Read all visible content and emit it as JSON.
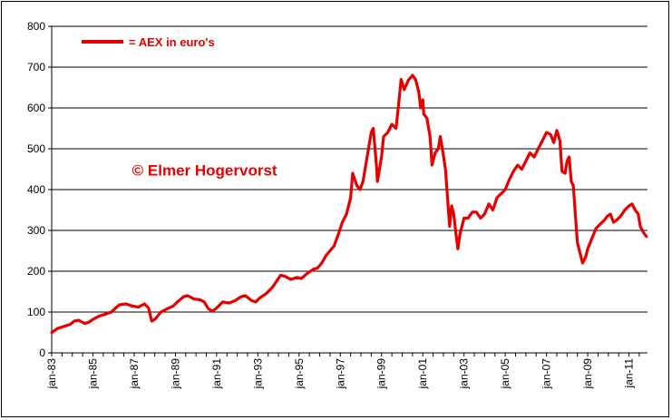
{
  "chart_data": {
    "type": "line",
    "title": "",
    "xlabel": "",
    "ylabel": "",
    "ylim": [
      0,
      800
    ],
    "yticks": [
      0,
      100,
      200,
      300,
      400,
      500,
      600,
      700,
      800
    ],
    "xlim": [
      1983.0,
      2011.9
    ],
    "xticks": [
      {
        "x": 1983,
        "label": "jan-83"
      },
      {
        "x": 1985,
        "label": "jan-85"
      },
      {
        "x": 1987,
        "label": "jan-87"
      },
      {
        "x": 1989,
        "label": "jan-89"
      },
      {
        "x": 1991,
        "label": "jan-91"
      },
      {
        "x": 1993,
        "label": "jan-93"
      },
      {
        "x": 1995,
        "label": "jan-95"
      },
      {
        "x": 1997,
        "label": "jan-97"
      },
      {
        "x": 1999,
        "label": "jan-99"
      },
      {
        "x": 2001,
        "label": "jan-01"
      },
      {
        "x": 2003,
        "label": "jan-03"
      },
      {
        "x": 2005,
        "label": "jan-05"
      },
      {
        "x": 2007,
        "label": "jan-07"
      },
      {
        "x": 2009,
        "label": "jan-09"
      },
      {
        "x": 2011,
        "label": "jan-11"
      }
    ],
    "grid": "horizontal",
    "legend_position": "top-left",
    "series": [
      {
        "name": "= AEX in euro's",
        "color": "#e60000",
        "points": [
          [
            1983.0,
            50
          ],
          [
            1983.3,
            60
          ],
          [
            1983.6,
            65
          ],
          [
            1983.9,
            70
          ],
          [
            1984.1,
            78
          ],
          [
            1984.3,
            80
          ],
          [
            1984.6,
            72
          ],
          [
            1984.8,
            75
          ],
          [
            1985.0,
            82
          ],
          [
            1985.3,
            90
          ],
          [
            1985.6,
            95
          ],
          [
            1985.9,
            100
          ],
          [
            1986.1,
            110
          ],
          [
            1986.3,
            118
          ],
          [
            1986.6,
            120
          ],
          [
            1986.9,
            115
          ],
          [
            1987.2,
            112
          ],
          [
            1987.5,
            120
          ],
          [
            1987.7,
            110
          ],
          [
            1987.85,
            78
          ],
          [
            1988.0,
            82
          ],
          [
            1988.3,
            100
          ],
          [
            1988.6,
            108
          ],
          [
            1988.9,
            115
          ],
          [
            1989.1,
            125
          ],
          [
            1989.4,
            138
          ],
          [
            1989.6,
            140
          ],
          [
            1989.9,
            132
          ],
          [
            1990.2,
            130
          ],
          [
            1990.4,
            125
          ],
          [
            1990.6,
            108
          ],
          [
            1990.8,
            102
          ],
          [
            1991.0,
            110
          ],
          [
            1991.3,
            125
          ],
          [
            1991.6,
            122
          ],
          [
            1991.9,
            128
          ],
          [
            1992.2,
            138
          ],
          [
            1992.4,
            140
          ],
          [
            1992.7,
            128
          ],
          [
            1992.9,
            125
          ],
          [
            1993.1,
            135
          ],
          [
            1993.4,
            145
          ],
          [
            1993.7,
            160
          ],
          [
            1993.9,
            175
          ],
          [
            1994.1,
            190
          ],
          [
            1994.3,
            188
          ],
          [
            1994.6,
            180
          ],
          [
            1994.9,
            185
          ],
          [
            1995.1,
            182
          ],
          [
            1995.4,
            195
          ],
          [
            1995.7,
            205
          ],
          [
            1995.9,
            208
          ],
          [
            1996.1,
            220
          ],
          [
            1996.3,
            238
          ],
          [
            1996.5,
            250
          ],
          [
            1996.7,
            262
          ],
          [
            1996.9,
            290
          ],
          [
            1997.1,
            320
          ],
          [
            1997.3,
            340
          ],
          [
            1997.5,
            380
          ],
          [
            1997.6,
            440
          ],
          [
            1997.8,
            410
          ],
          [
            1997.95,
            400
          ],
          [
            1998.1,
            420
          ],
          [
            1998.3,
            480
          ],
          [
            1998.5,
            540
          ],
          [
            1998.6,
            550
          ],
          [
            1998.75,
            460
          ],
          [
            1998.8,
            420
          ],
          [
            1999.0,
            480
          ],
          [
            1999.1,
            530
          ],
          [
            1999.3,
            540
          ],
          [
            1999.5,
            560
          ],
          [
            1999.7,
            550
          ],
          [
            1999.85,
            620
          ],
          [
            1999.95,
            670
          ],
          [
            2000.1,
            645
          ],
          [
            2000.3,
            668
          ],
          [
            2000.5,
            680
          ],
          [
            2000.65,
            670
          ],
          [
            2000.8,
            640
          ],
          [
            2000.9,
            600
          ],
          [
            2001.0,
            620
          ],
          [
            2001.05,
            585
          ],
          [
            2001.2,
            575
          ],
          [
            2001.35,
            530
          ],
          [
            2001.45,
            460
          ],
          [
            2001.6,
            490
          ],
          [
            2001.75,
            500
          ],
          [
            2001.85,
            530
          ],
          [
            2001.95,
            500
          ],
          [
            2002.1,
            450
          ],
          [
            2002.2,
            380
          ],
          [
            2002.3,
            310
          ],
          [
            2002.4,
            360
          ],
          [
            2002.5,
            340
          ],
          [
            2002.6,
            295
          ],
          [
            2002.7,
            255
          ],
          [
            2002.8,
            290
          ],
          [
            2002.9,
            310
          ],
          [
            2003.0,
            330
          ],
          [
            2003.2,
            330
          ],
          [
            2003.4,
            345
          ],
          [
            2003.6,
            345
          ],
          [
            2003.8,
            330
          ],
          [
            2004.0,
            340
          ],
          [
            2004.2,
            365
          ],
          [
            2004.4,
            350
          ],
          [
            2004.6,
            380
          ],
          [
            2004.8,
            390
          ],
          [
            2005.0,
            400
          ],
          [
            2005.2,
            425
          ],
          [
            2005.4,
            445
          ],
          [
            2005.6,
            460
          ],
          [
            2005.8,
            450
          ],
          [
            2006.0,
            470
          ],
          [
            2006.2,
            490
          ],
          [
            2006.4,
            480
          ],
          [
            2006.6,
            500
          ],
          [
            2006.8,
            520
          ],
          [
            2007.0,
            540
          ],
          [
            2007.2,
            535
          ],
          [
            2007.35,
            515
          ],
          [
            2007.5,
            545
          ],
          [
            2007.65,
            520
          ],
          [
            2007.75,
            445
          ],
          [
            2007.9,
            440
          ],
          [
            2008.0,
            470
          ],
          [
            2008.1,
            480
          ],
          [
            2008.2,
            420
          ],
          [
            2008.3,
            410
          ],
          [
            2008.4,
            340
          ],
          [
            2008.5,
            270
          ],
          [
            2008.6,
            250
          ],
          [
            2008.75,
            220
          ],
          [
            2008.9,
            235
          ],
          [
            2009.0,
            255
          ],
          [
            2009.2,
            280
          ],
          [
            2009.4,
            305
          ],
          [
            2009.6,
            315
          ],
          [
            2009.8,
            325
          ],
          [
            2009.95,
            335
          ],
          [
            2010.1,
            340
          ],
          [
            2010.25,
            320
          ],
          [
            2010.4,
            325
          ],
          [
            2010.6,
            335
          ],
          [
            2010.8,
            350
          ],
          [
            2011.0,
            360
          ],
          [
            2011.15,
            365
          ],
          [
            2011.3,
            350
          ],
          [
            2011.45,
            340
          ],
          [
            2011.55,
            310
          ],
          [
            2011.7,
            295
          ],
          [
            2011.85,
            285
          ]
        ]
      }
    ],
    "legend": {
      "label": "= AEX in euro's"
    },
    "annotations": [
      {
        "text": "© Elmer Hogervorst",
        "x": 1986.9,
        "y": 435
      }
    ]
  }
}
